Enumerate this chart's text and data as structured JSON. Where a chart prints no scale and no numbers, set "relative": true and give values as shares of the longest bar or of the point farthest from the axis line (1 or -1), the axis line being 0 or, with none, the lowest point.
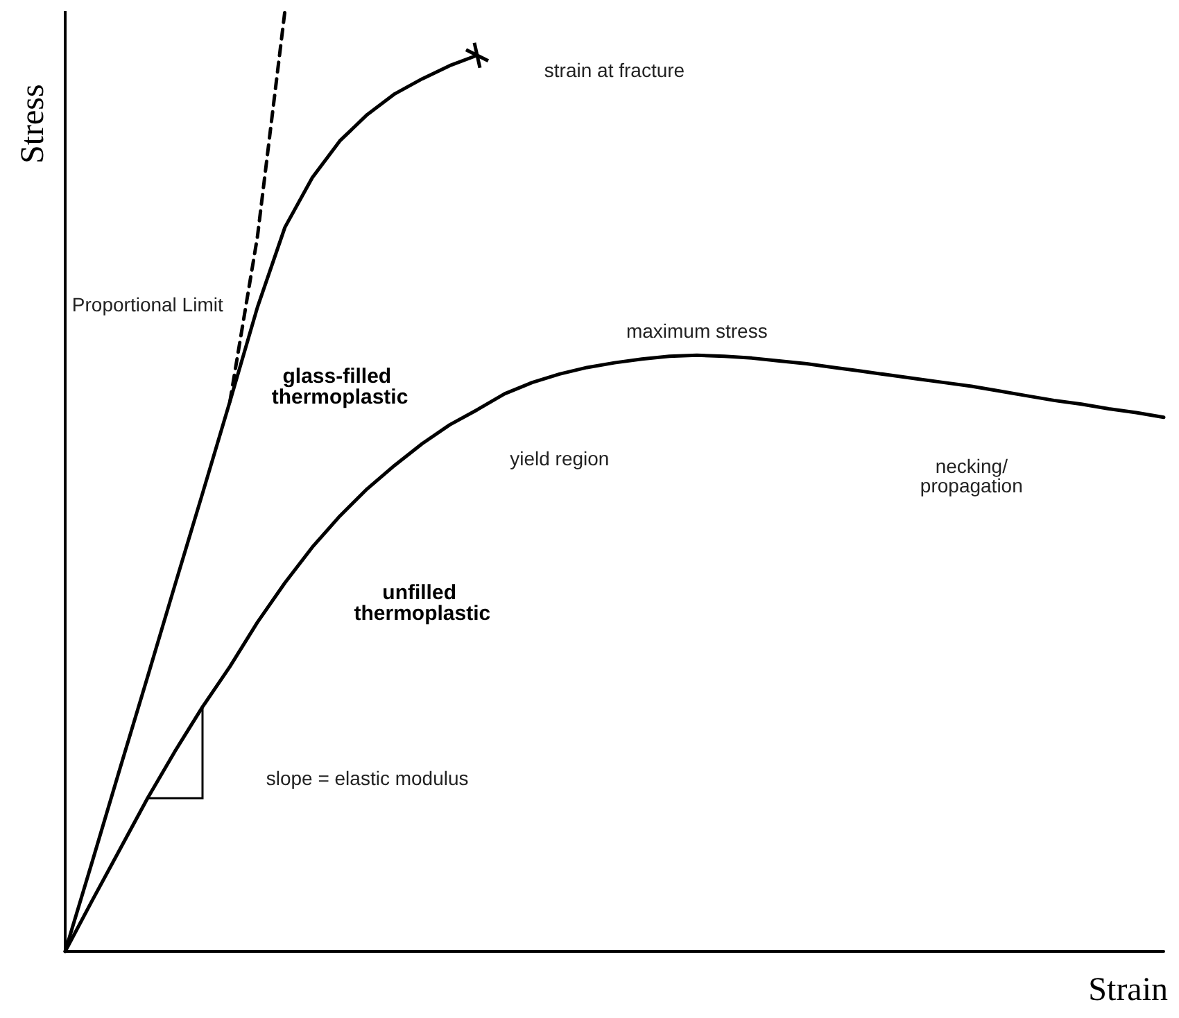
{
  "chart_data": {
    "type": "line",
    "relative": true,
    "xlabel": "Strain",
    "ylabel": "Stress",
    "marker": "none",
    "line_style": "solid",
    "grid": false,
    "legend": false,
    "categories": [
      null,
      null,
      null,
      null,
      null,
      null,
      null,
      null,
      null,
      null,
      null,
      null,
      null,
      null,
      null,
      null,
      null,
      null,
      null,
      null,
      null,
      null,
      null,
      null,
      null,
      null,
      null,
      null,
      null,
      null,
      null,
      null,
      null,
      null,
      null,
      null,
      null,
      null,
      null,
      null,
      null
    ],
    "series": [
      {
        "name": "glass-filled thermoplastic",
        "color": "#000000",
        "values": [
          0,
          0.097,
          0.195,
          0.292,
          0.39,
          0.487,
          0.585,
          0.685,
          0.77,
          0.823,
          0.862,
          0.89,
          0.912,
          0.928,
          0.942,
          0.953,
          null,
          null,
          null,
          null,
          null,
          null,
          null,
          null,
          null,
          null,
          null,
          null,
          null,
          null,
          null,
          null,
          null,
          null,
          null,
          null,
          null,
          null,
          null,
          null,
          null
        ]
      },
      {
        "color": "#000000",
        "line_style": "dashed",
        "values": [
          null,
          null,
          null,
          null,
          null,
          null,
          0.585,
          0.76,
          1.0,
          null,
          null,
          null,
          null,
          null,
          null,
          null,
          null,
          null,
          null,
          null,
          null,
          null,
          null,
          null,
          null,
          null,
          null,
          null,
          null,
          null,
          null,
          null,
          null,
          null,
          null,
          null,
          null,
          null,
          null,
          null,
          null
        ]
      },
      {
        "name": "unfilled thermoplastic",
        "color": "#000000",
        "values": [
          0,
          0.055,
          0.109,
          0.163,
          0.213,
          0.26,
          0.303,
          0.35,
          0.392,
          0.43,
          0.463,
          0.492,
          0.517,
          0.54,
          0.56,
          0.576,
          0.593,
          0.605,
          0.614,
          0.621,
          0.626,
          0.63,
          0.633,
          0.634,
          0.633,
          0.631,
          0.628,
          0.625,
          0.621,
          0.617,
          0.613,
          0.609,
          0.605,
          0.601,
          0.596,
          0.591,
          0.586,
          0.582,
          0.577,
          0.573,
          0.568
        ]
      }
    ],
    "annotations": [
      "strain at fracture",
      "Proportional Limit",
      "maximum stress",
      "yield region",
      "necking/\npropagation",
      "slope = elastic modulus"
    ]
  }
}
